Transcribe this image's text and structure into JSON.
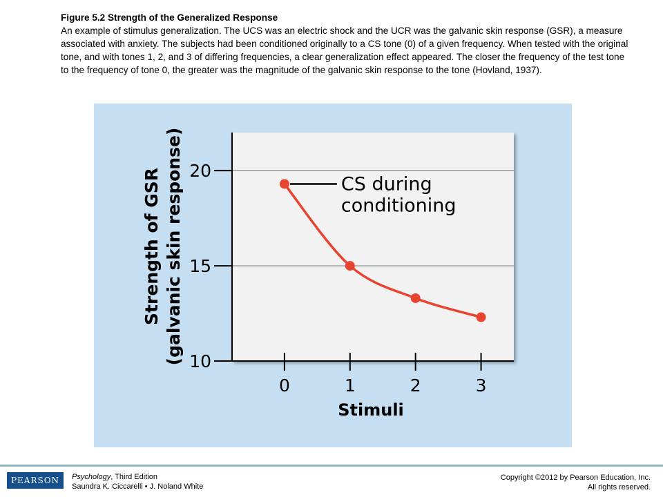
{
  "caption": {
    "title": "Figure 5.2 Strength of the Generalized Response",
    "text": "An example of stimulus generalization. The UCS was an electric shock and the UCR was the galvanic skin response (GSR), a measure associated with anxiety. The subjects had been conditioned originally to a CS tone (0) of a given frequency. When tested with the original tone, and with tones 1, 2, and 3 of differing frequencies, a clear generalization effect appeared. The closer the frequency of the test tone to the frequency of tone 0, the greater was the magnitude of the galvanic skin response to the tone (Hovland, 1937)."
  },
  "chart_data": {
    "type": "line",
    "x": [
      0,
      1,
      2,
      3
    ],
    "values": [
      19.3,
      15.0,
      13.3,
      12.3
    ],
    "xlabel": "Stimuli",
    "ylabel_line1": "Strength of GSR",
    "ylabel_line2": "(galvanic skin response)",
    "xlim": [
      -0.8,
      3.5
    ],
    "ylim": [
      10,
      22
    ],
    "yticks": [
      10,
      15,
      20
    ],
    "xticks": [
      0,
      1,
      2,
      3
    ],
    "grid": "horizontal",
    "annotation": {
      "line1": "CS during",
      "line2": "conditioning",
      "point_index": 0
    },
    "colors": {
      "series": "#e8432e",
      "plot_background": "#f2f2f2",
      "panel_background": "#c5def2",
      "gridline": "#999999"
    }
  },
  "footer": {
    "logo": "PEARSON",
    "book_title": "Psychology",
    "book_edition": ", Third Edition",
    "authors": "Saundra K. Ciccarelli • J. Noland White",
    "copyright": "Copyright ©2012 by Pearson Education, Inc.",
    "rights": "All rights reserved.",
    "colors": {
      "logo": "#16508c",
      "rule": "#8fb6be"
    }
  }
}
